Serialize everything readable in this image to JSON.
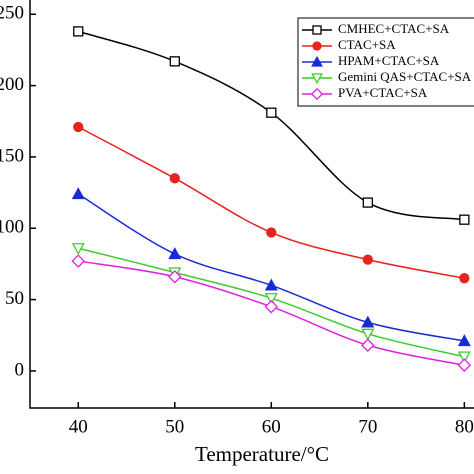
{
  "chart_data": {
    "type": "line",
    "x_label": "Temperature/°C",
    "x": [
      40,
      50,
      60,
      70,
      80
    ],
    "xlim": [
      35,
      81
    ],
    "xticks": [
      40,
      50,
      60,
      70,
      80
    ],
    "ylim": [
      -26,
      260
    ],
    "yticks": [
      0,
      50,
      100,
      150,
      200,
      250
    ],
    "legend": "upper right",
    "series": [
      {
        "name": "CMHEC+CTAC+SA",
        "color": "#000000",
        "marker": "square-open",
        "values": [
          238,
          217,
          181,
          118,
          106
        ]
      },
      {
        "name": "CTAC+SA",
        "color": "#e8221c",
        "marker": "circle",
        "values": [
          171,
          135,
          97,
          78,
          65
        ]
      },
      {
        "name": "HPAM+CTAC+SA",
        "color": "#1a2bd6",
        "marker": "triangle-up",
        "values": [
          124,
          82,
          60,
          34,
          21
        ]
      },
      {
        "name": "Gemini QAS+CTAC+SA",
        "color": "#3ccc2c",
        "marker": "triangle-down-open",
        "values": [
          86,
          69,
          51,
          26,
          10
        ]
      },
      {
        "name": "PVA+CTAC+SA",
        "color": "#e020e0",
        "marker": "diamond-open",
        "values": [
          77,
          66,
          45,
          18,
          4
        ]
      }
    ]
  }
}
